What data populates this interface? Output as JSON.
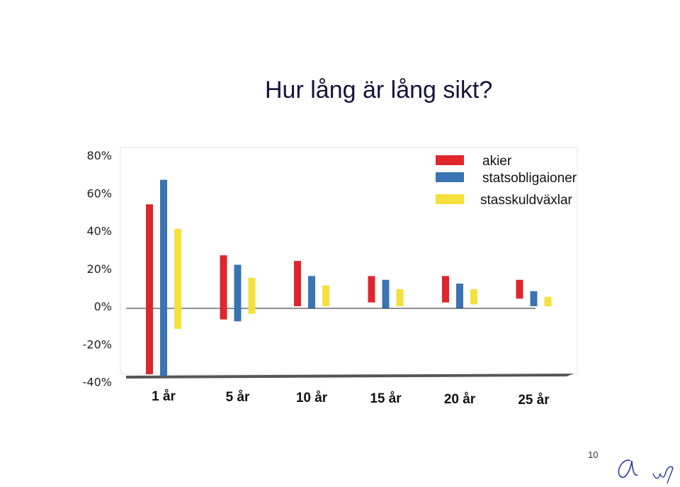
{
  "page": {
    "title": "Hur lång är lång sikt?",
    "page_number": "10"
  },
  "chart_data": {
    "type": "bar",
    "subtype": "floating-range",
    "categories": [
      "1 år",
      "5 år",
      "10 år",
      "15 år",
      "20 år",
      "25 år"
    ],
    "series": [
      {
        "name": "akier",
        "color": "#e0262b",
        "ranges": [
          [
            -36,
            54
          ],
          [
            -7,
            27
          ],
          [
            0,
            24
          ],
          [
            2,
            16
          ],
          [
            2,
            16
          ],
          [
            4,
            14
          ]
        ]
      },
      {
        "name": "statsobligaioner",
        "color": "#3a74b4",
        "ranges": [
          [
            -37,
            67
          ],
          [
            -8,
            22
          ],
          [
            -1,
            16
          ],
          [
            -1,
            14
          ],
          [
            -1,
            12
          ],
          [
            0,
            8
          ]
        ]
      },
      {
        "name": "stasskuldväxlar",
        "color": "#f5e03c",
        "ranges": [
          [
            -12,
            41
          ],
          [
            -4,
            15
          ],
          [
            0,
            11
          ],
          [
            0,
            9
          ],
          [
            1,
            9
          ],
          [
            0,
            5
          ]
        ]
      }
    ],
    "y_ticks": [
      "80%",
      "60%",
      "40%",
      "20%",
      "0%",
      "-20%",
      "-40%"
    ],
    "ylim": [
      -40,
      80
    ],
    "grid": false,
    "legend_position": "top-right"
  }
}
